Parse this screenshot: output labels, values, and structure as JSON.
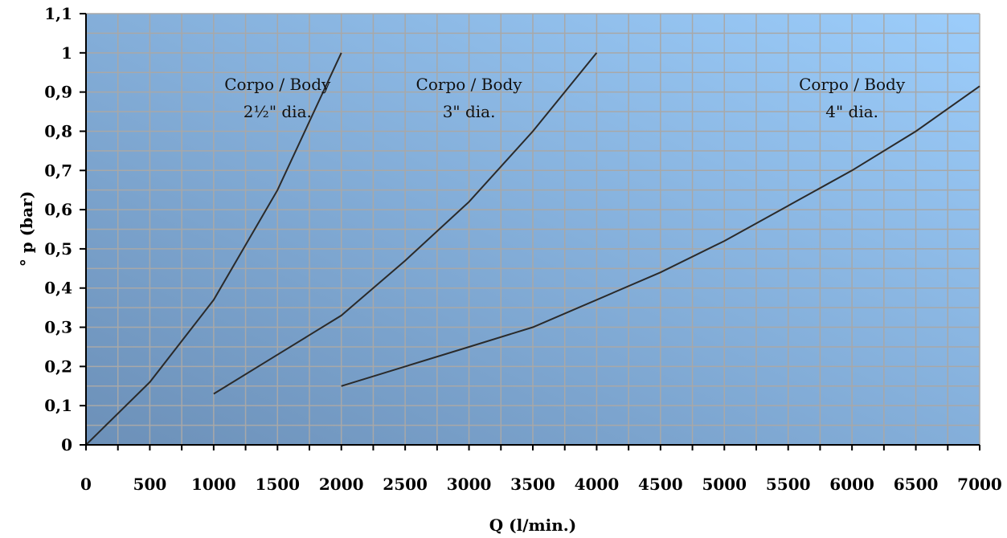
{
  "chart_data": {
    "type": "line",
    "title": "",
    "xlabel": "Q (l/min.)",
    "ylabel": "° p (bar)",
    "xlim": [
      0,
      7000
    ],
    "ylim": [
      0,
      1.1
    ],
    "x_ticks": [
      "0",
      "500",
      "1000",
      "1500",
      "2000",
      "2500",
      "3000",
      "3500",
      "4000",
      "4500",
      "5000",
      "5500",
      "6000",
      "6500",
      "7000"
    ],
    "x_tick_values": [
      0,
      500,
      1000,
      1500,
      2000,
      2500,
      3000,
      3500,
      4000,
      4500,
      5000,
      5500,
      6000,
      6500,
      7000
    ],
    "y_ticks": [
      "0",
      "0,1",
      "0,2",
      "0,3",
      "0,4",
      "0,5",
      "0,6",
      "0,7",
      "0,8",
      "0,9",
      "1",
      "1,1"
    ],
    "y_tick_values": [
      0,
      0.1,
      0.2,
      0.3,
      0.4,
      0.5,
      0.6,
      0.7,
      0.8,
      0.9,
      1.0,
      1.1
    ],
    "grid": true,
    "background": {
      "gradient_from": "#6c90b8",
      "gradient_to": "#9ccdfb"
    },
    "line_color": "#2a2a2a",
    "grid_color": "#a8a8a8",
    "series": [
      {
        "label_lines": [
          "Corpo / Body",
          "2½\" dia."
        ],
        "label_at": [
          1500,
          0.905
        ],
        "points": [
          [
            0,
            0
          ],
          [
            500,
            0.16
          ],
          [
            1000,
            0.37
          ],
          [
            1500,
            0.65
          ],
          [
            2000,
            1.0
          ]
        ]
      },
      {
        "label_lines": [
          "Corpo / Body",
          "3\" dia."
        ],
        "label_at": [
          3000,
          0.905
        ],
        "points": [
          [
            1000,
            0.13
          ],
          [
            1500,
            0.23
          ],
          [
            2000,
            0.33
          ],
          [
            2500,
            0.47
          ],
          [
            3000,
            0.62
          ],
          [
            3500,
            0.8
          ],
          [
            4000,
            1.0
          ]
        ]
      },
      {
        "label_lines": [
          "Corpo / Body",
          "4\" dia."
        ],
        "label_at": [
          6000,
          0.905
        ],
        "points": [
          [
            2000,
            0.15
          ],
          [
            2500,
            0.2
          ],
          [
            3000,
            0.25
          ],
          [
            3500,
            0.3
          ],
          [
            4000,
            0.37
          ],
          [
            4500,
            0.44
          ],
          [
            5000,
            0.52
          ],
          [
            5500,
            0.61
          ],
          [
            6000,
            0.7
          ],
          [
            6500,
            0.8
          ],
          [
            7000,
            0.915
          ]
        ]
      }
    ]
  }
}
